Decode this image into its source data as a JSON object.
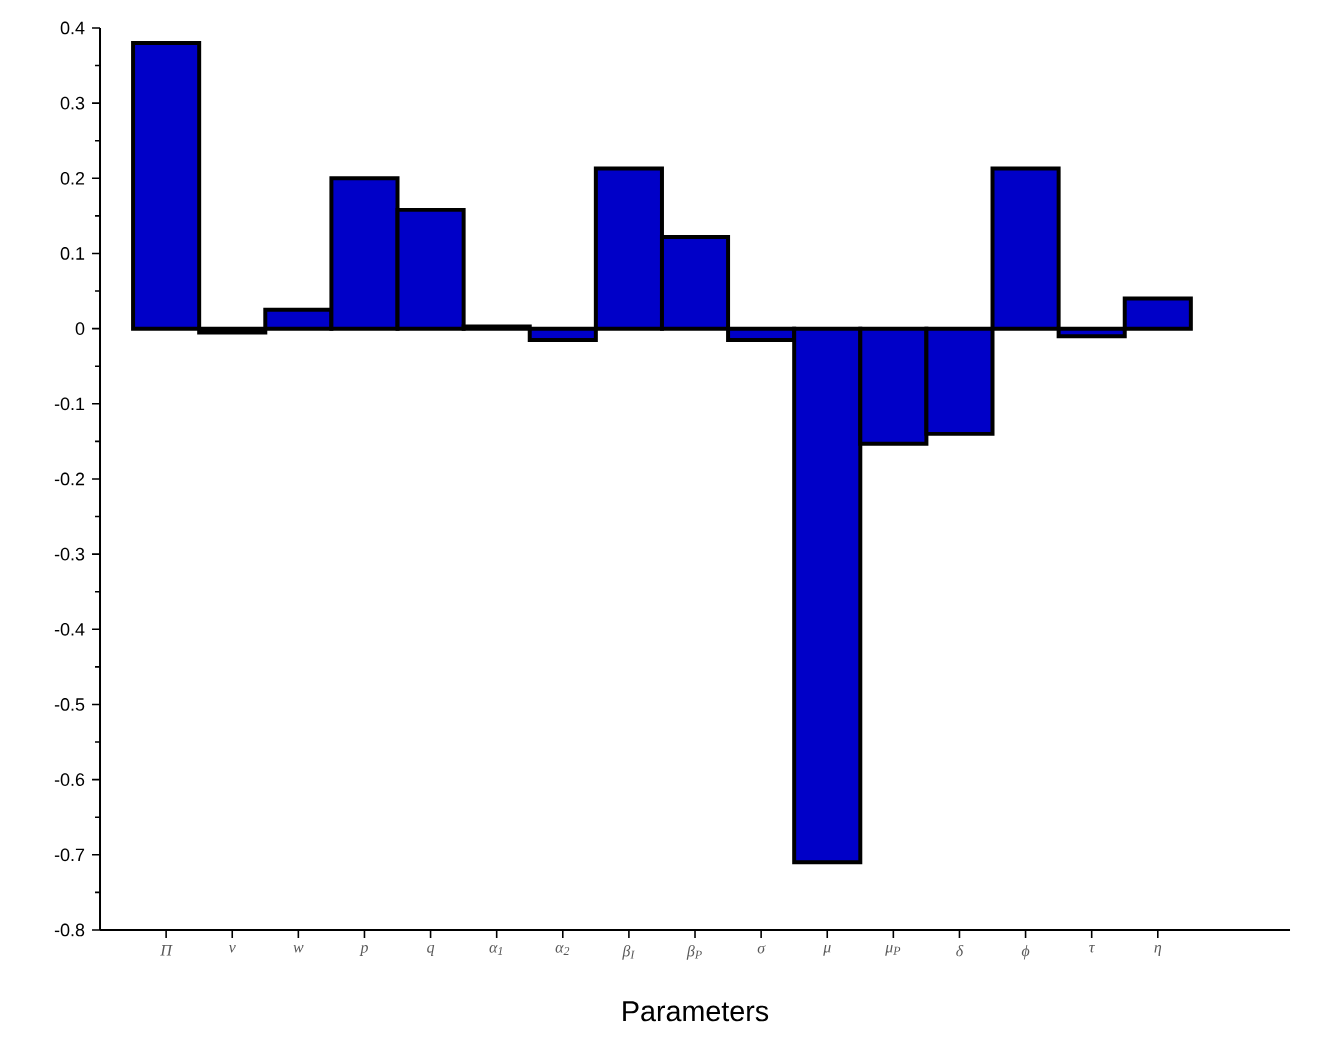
{
  "chart_data": {
    "type": "bar",
    "xlabel": "Parameters",
    "categories": [
      "Π",
      "v",
      "w",
      "p",
      "q",
      "α$_{1}$",
      "α$_{2}$",
      "β$_{I}$",
      "β$_{P}$",
      "σ",
      "μ",
      "μ$_{P}$",
      "δ",
      "ϕ",
      "τ",
      "η"
    ],
    "values": [
      0.38,
      -0.005,
      0.025,
      0.2,
      0.158,
      0.003,
      -0.015,
      0.213,
      0.122,
      -0.015,
      -0.71,
      -0.153,
      -0.14,
      0.213,
      -0.01,
      0.04
    ],
    "color": "#0000c8",
    "ylim": [
      -0.8,
      0.4
    ],
    "yticks": [
      -0.8,
      -0.7,
      -0.6,
      -0.5,
      -0.4,
      -0.3,
      -0.2,
      -0.1,
      0,
      0.1,
      0.2,
      0.3,
      0.4
    ]
  }
}
